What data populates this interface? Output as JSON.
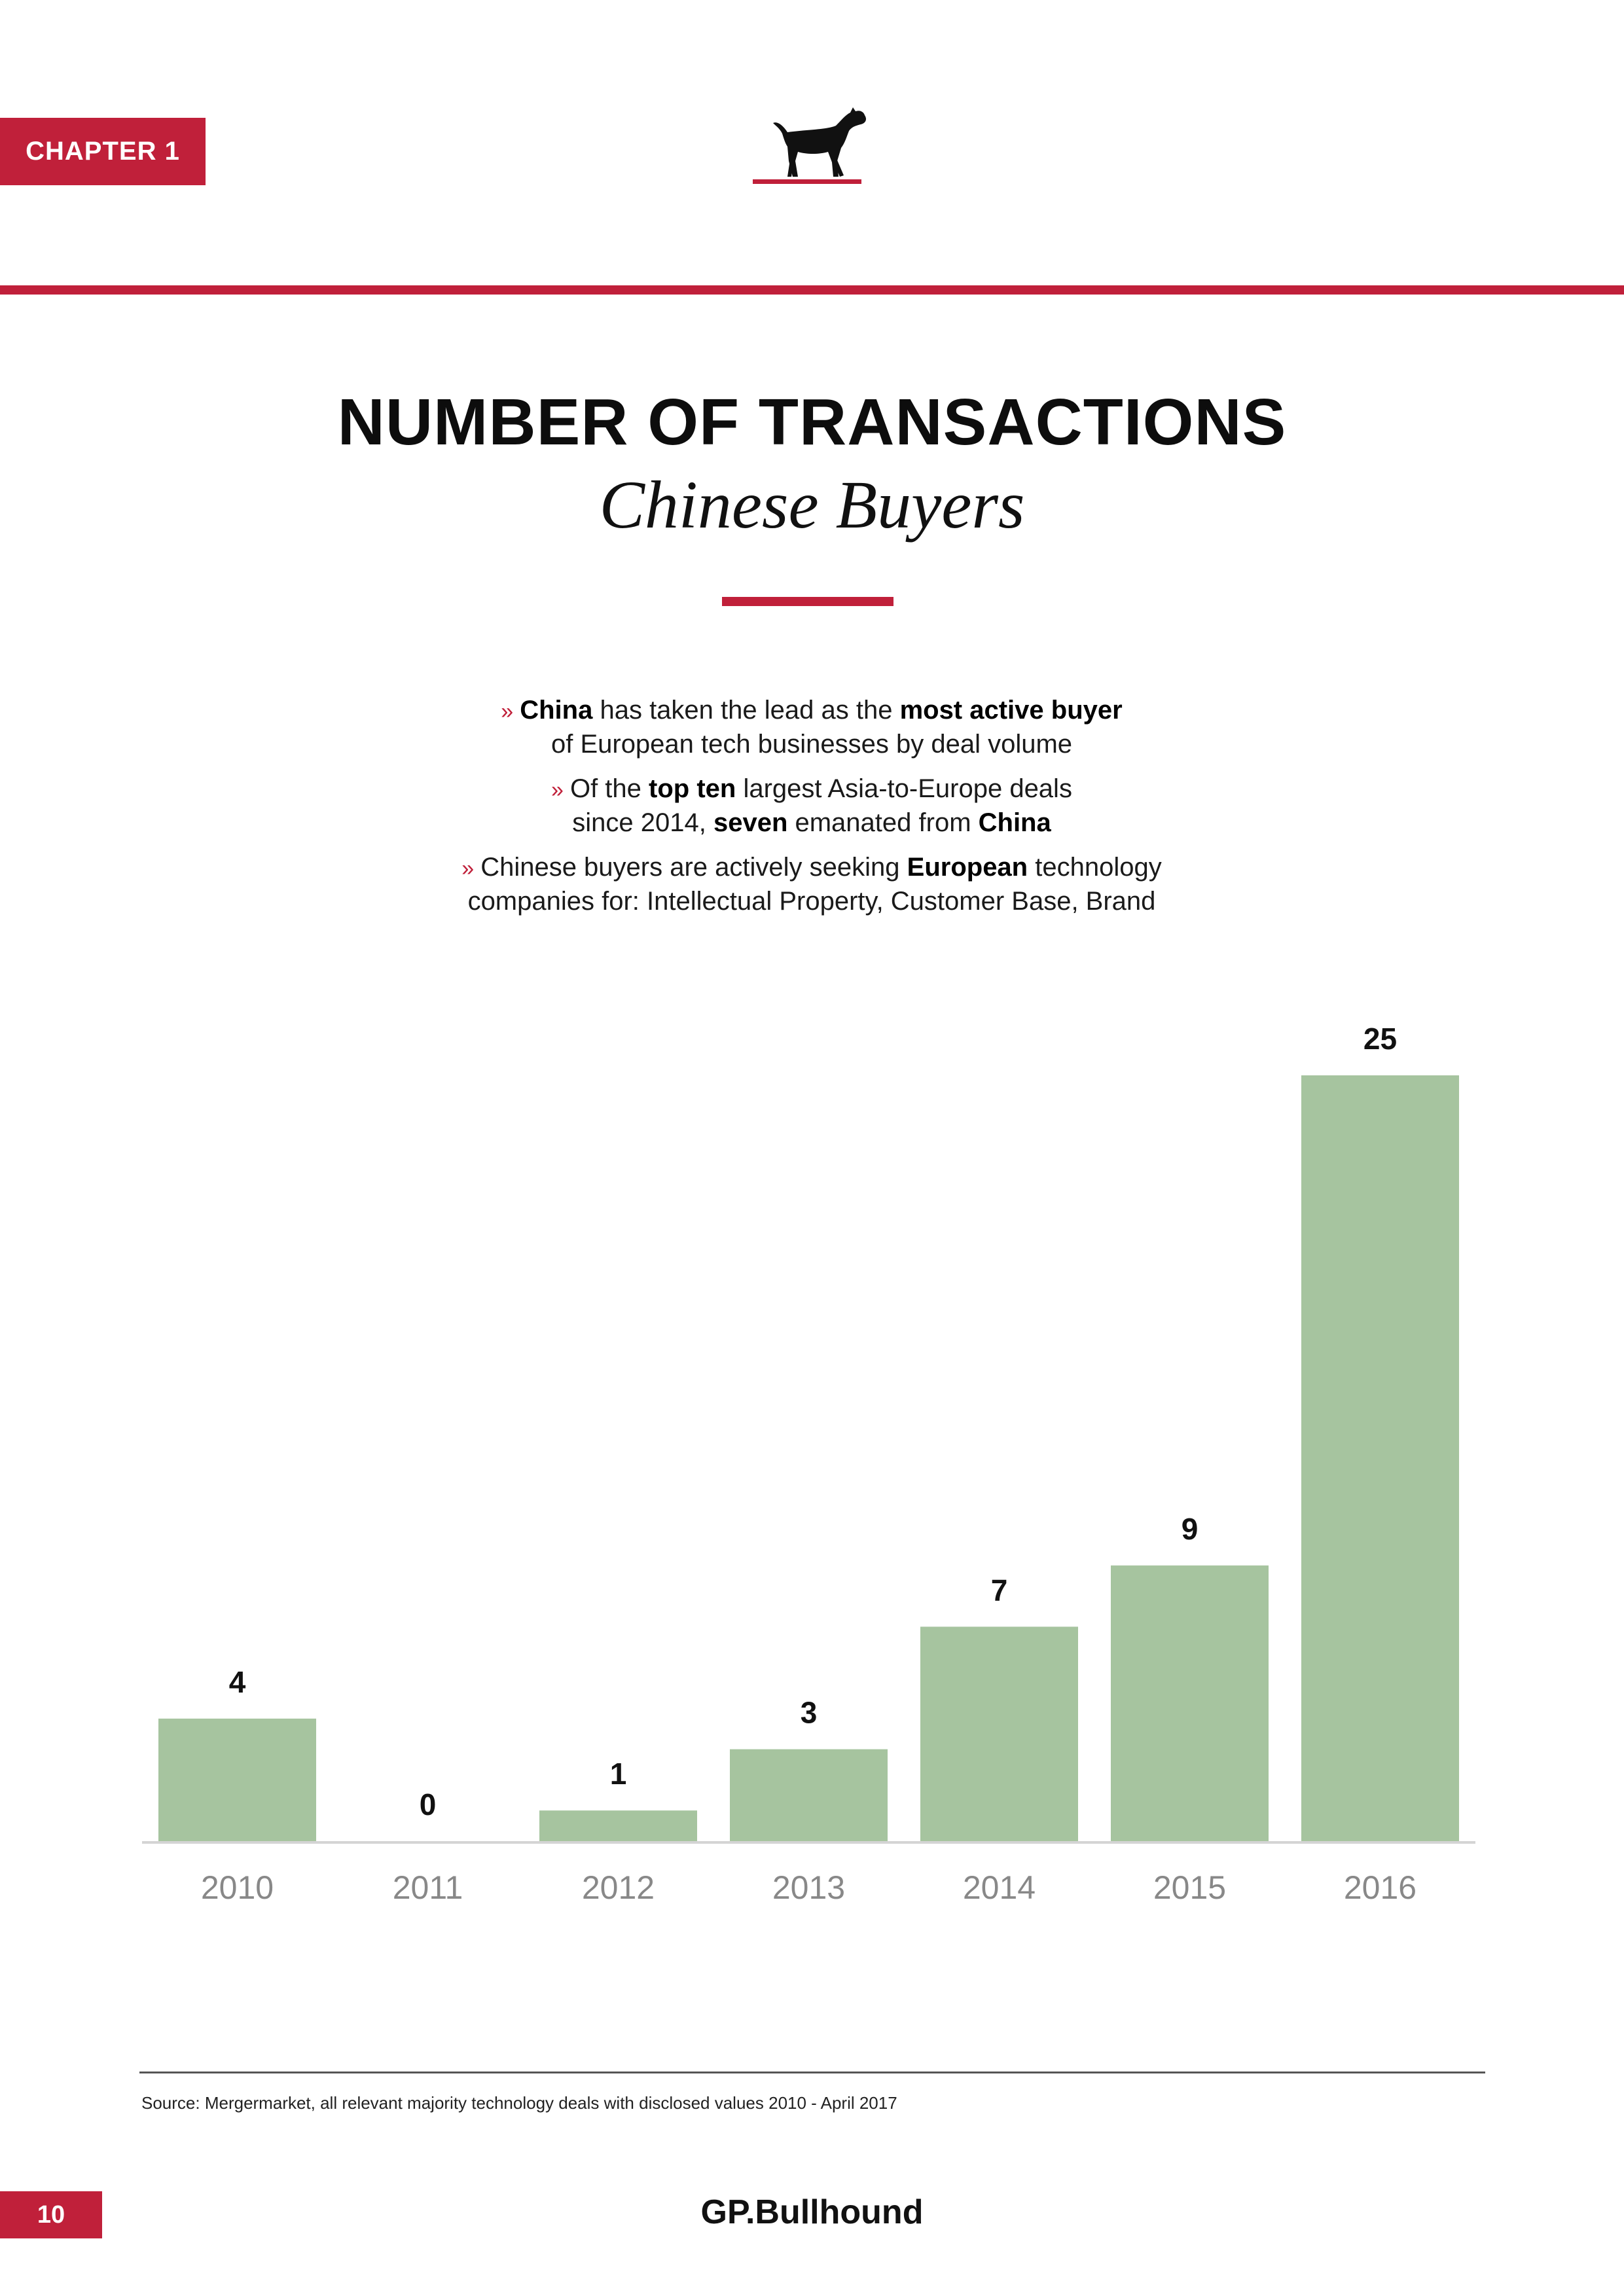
{
  "header": {
    "chapter_label": "CHAPTER 1"
  },
  "title": "NUMBER OF TRANSACTIONS",
  "subtitle": "Chinese Buyers",
  "bullets": [
    {
      "marker": "»",
      "line1": [
        {
          "text": "China",
          "bold": true
        },
        {
          "text": " has taken the lead as the ",
          "bold": false
        },
        {
          "text": "most active buyer",
          "bold": true
        }
      ],
      "line2": [
        {
          "text": "of European tech businesses by deal volume",
          "bold": false
        }
      ]
    },
    {
      "marker": "»",
      "line1": [
        {
          "text": "Of the ",
          "bold": false
        },
        {
          "text": "top ten",
          "bold": true
        },
        {
          "text": " largest Asia-to-Europe deals",
          "bold": false
        }
      ],
      "line2": [
        {
          "text": "since 2014, ",
          "bold": false
        },
        {
          "text": "seven",
          "bold": true
        },
        {
          "text": " emanated from ",
          "bold": false
        },
        {
          "text": "China",
          "bold": true
        }
      ]
    },
    {
      "marker": "»",
      "line1": [
        {
          "text": "Chinese buyers are actively seeking ",
          "bold": false
        },
        {
          "text": "European",
          "bold": true
        },
        {
          "text": " technology",
          "bold": false
        }
      ],
      "line2": [
        {
          "text": "companies for: Intellectual Property, Customer Base, Brand",
          "bold": false
        }
      ]
    }
  ],
  "chart_data": {
    "type": "bar",
    "categories": [
      "2010",
      "2011",
      "2012",
      "2013",
      "2014",
      "2015",
      "2016"
    ],
    "values": [
      4,
      0,
      1,
      3,
      7,
      9,
      25
    ],
    "data_labels": [
      "4",
      "0",
      "1",
      "3",
      "7",
      "9",
      "25"
    ],
    "title": "",
    "xlabel": "",
    "ylabel": "",
    "ylim": [
      0,
      25
    ],
    "grid": false,
    "legend": "none",
    "bar_color": "#a6c49f"
  },
  "source_note": "Source: Mergermarket, all relevant majority technology deals with disclosed values 2010 - April 2017",
  "footer": {
    "page_number": "10",
    "brand": "GP.Bullhound"
  },
  "colors": {
    "accent": "#c0203a",
    "bar": "#a6c49f",
    "axis": "#d4d4d4",
    "tick_text": "#888888"
  },
  "icons": {
    "logo": "bull-terrier-dog-icon"
  }
}
